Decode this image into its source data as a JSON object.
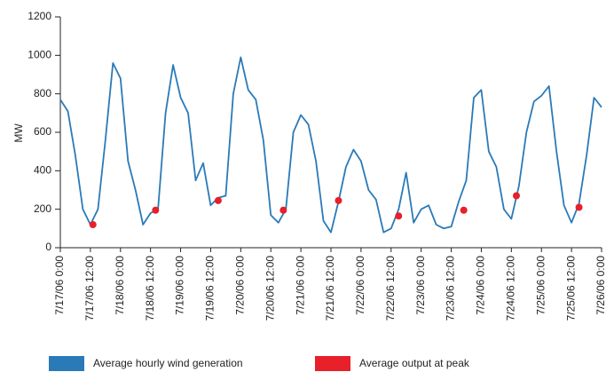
{
  "chart_data": {
    "type": "line",
    "y_label": "MW",
    "ylim": [
      0,
      1200
    ],
    "yticks": [
      0,
      200,
      400,
      600,
      800,
      1000,
      1200
    ],
    "xlim": [
      "7/17/06 0:00",
      "7/26/06 0:00"
    ],
    "xticks": [
      "7/17/06 0:00",
      "7/17/06 12:00",
      "7/18/06 0:00",
      "7/18/06 12:00",
      "7/19/06 0:00",
      "7/19/06 12:00",
      "7/20/06 0:00",
      "7/20/06 12:00",
      "7/21/06 0:00",
      "7/21/06 12:00",
      "7/22/06 0:00",
      "7/22/06 12:00",
      "7/23/06 0:00",
      "7/23/06 12:00",
      "7/24/06 0:00",
      "7/24/06 12:00",
      "7/25/06 0:00",
      "7/25/06 12:00",
      "7/26/06 0:00"
    ],
    "grid": false,
    "series": [
      {
        "name": "Average hourly wind generation",
        "type": "line",
        "color": "#2a7ab8",
        "x": [
          "7/17/06 0:00",
          "7/17/06 3:00",
          "7/17/06 6:00",
          "7/17/06 9:00",
          "7/17/06 12:00",
          "7/17/06 15:00",
          "7/17/06 18:00",
          "7/17/06 21:00",
          "7/18/06 0:00",
          "7/18/06 3:00",
          "7/18/06 6:00",
          "7/18/06 9:00",
          "7/18/06 12:00",
          "7/18/06 15:00",
          "7/18/06 18:00",
          "7/18/06 21:00",
          "7/19/06 0:00",
          "7/19/06 3:00",
          "7/19/06 6:00",
          "7/19/06 9:00",
          "7/19/06 12:00",
          "7/19/06 15:00",
          "7/19/06 18:00",
          "7/19/06 21:00",
          "7/20/06 0:00",
          "7/20/06 3:00",
          "7/20/06 6:00",
          "7/20/06 9:00",
          "7/20/06 12:00",
          "7/20/06 15:00",
          "7/20/06 18:00",
          "7/20/06 21:00",
          "7/21/06 0:00",
          "7/21/06 3:00",
          "7/21/06 6:00",
          "7/21/06 9:00",
          "7/21/06 12:00",
          "7/21/06 15:00",
          "7/21/06 18:00",
          "7/21/06 21:00",
          "7/22/06 0:00",
          "7/22/06 3:00",
          "7/22/06 6:00",
          "7/22/06 9:00",
          "7/22/06 12:00",
          "7/22/06 15:00",
          "7/22/06 18:00",
          "7/22/06 21:00",
          "7/23/06 0:00",
          "7/23/06 3:00",
          "7/23/06 6:00",
          "7/23/06 9:00",
          "7/23/06 12:00",
          "7/23/06 15:00",
          "7/23/06 18:00",
          "7/23/06 21:00",
          "7/24/06 0:00",
          "7/24/06 3:00",
          "7/24/06 6:00",
          "7/24/06 9:00",
          "7/24/06 12:00",
          "7/24/06 15:00",
          "7/24/06 18:00",
          "7/24/06 21:00",
          "7/25/06 0:00",
          "7/25/06 3:00",
          "7/25/06 6:00",
          "7/25/06 9:00",
          "7/25/06 12:00",
          "7/25/06 15:00",
          "7/25/06 18:00",
          "7/25/06 21:00",
          "7/26/06 0:00"
        ],
        "values": [
          770,
          710,
          480,
          200,
          120,
          200,
          560,
          960,
          880,
          450,
          300,
          120,
          180,
          200,
          700,
          950,
          780,
          700,
          350,
          440,
          220,
          260,
          270,
          800,
          990,
          820,
          770,
          560,
          170,
          130,
          200,
          600,
          690,
          640,
          450,
          140,
          80,
          240,
          420,
          510,
          450,
          300,
          250,
          80,
          100,
          200,
          390,
          130,
          200,
          220,
          120,
          100,
          110,
          240,
          350,
          780,
          820,
          500,
          420,
          200,
          150,
          320,
          600,
          760,
          790,
          840,
          500,
          220,
          130,
          230,
          480,
          780,
          730
        ]
      },
      {
        "name": "Average output at peak",
        "type": "scatter",
        "color": "#e8202a",
        "x": [
          "7/17/06 13:00",
          "7/18/06 14:00",
          "7/19/06 15:00",
          "7/20/06 17:00",
          "7/21/06 15:00",
          "7/22/06 15:00",
          "7/23/06 17:00",
          "7/24/06 14:00",
          "7/25/06 15:00"
        ],
        "values": [
          120,
          195,
          245,
          195,
          245,
          165,
          195,
          270,
          210
        ]
      }
    ]
  }
}
